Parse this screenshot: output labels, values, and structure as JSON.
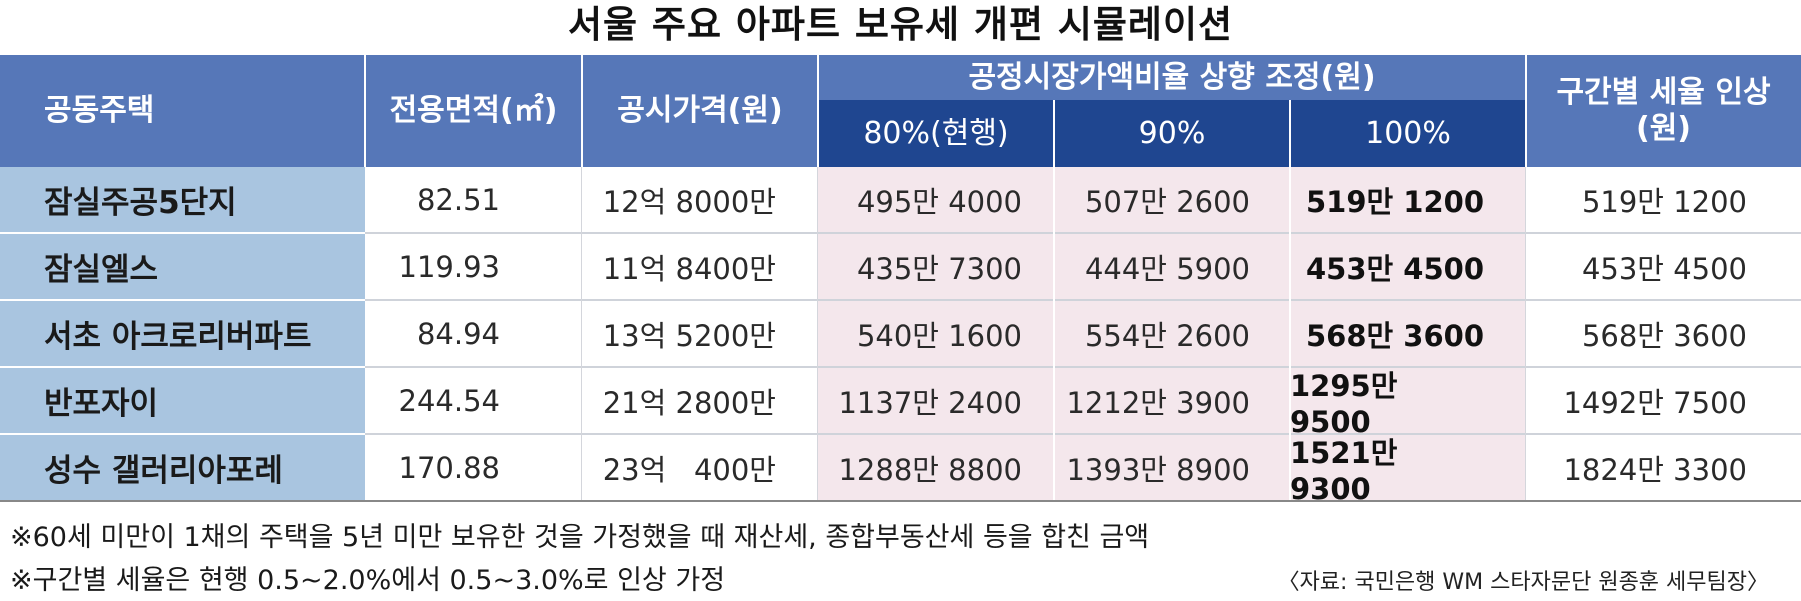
{
  "title": "서울 주요 아파트 보유세 개편 시뮬레이션",
  "headers": {
    "apartment": "공동주택",
    "area": "전용면적(㎡)",
    "price": "공시가격(원)",
    "ratio_group": "공정시장가액비율 상향 조정(원)",
    "p80": "80%(현행)",
    "p90": "90%",
    "p100": "100%",
    "rate_line1": "구간별 세율 인상",
    "rate_line2": "(원)"
  },
  "rows": [
    {
      "name": "잠실주공5단지",
      "area": "82.51",
      "price": "12억 8000만",
      "p80": "495만 4000",
      "p90": "507만 2600",
      "p100": "519만 1200",
      "rate": "519만 1200"
    },
    {
      "name": "잠실엘스",
      "area": "119.93",
      "price": "11억 8400만",
      "p80": "435만 7300",
      "p90": "444만 5900",
      "p100": "453만 4500",
      "rate": "453만 4500"
    },
    {
      "name": "서초 아크로리버파트",
      "area": "84.94",
      "price": "13억 5200만",
      "p80": "540만 1600",
      "p90": "554만 2600",
      "p100": "568만 3600",
      "rate": "568만 3600"
    },
    {
      "name": "반포자이",
      "area": "244.54",
      "price": "21억 2800만",
      "p80": "1137만 2400",
      "p90": "1212만 3900",
      "p100": "1295만 9500",
      "rate": "1492만 7500"
    },
    {
      "name": "성수 갤러리아포레",
      "area": "170.88",
      "price": "23억   400만",
      "p80": "1288만 8800",
      "p90": "1393만 8900",
      "p100": "1521만 9300",
      "rate": "1824만 3300"
    }
  ],
  "notes": {
    "note1": "※60세 미만이 1채의 주택을 5년 미만 보유한 것을 가정했을 때 재산세, 종합부동산세 등을 합친 금액",
    "note2": "※구간별 세율은 현행 0.5~2.0%에서 0.5~3.0%로 인상 가정",
    "source": "〈자료: 국민은행 WM 스타자문단 원종훈 세무팀장〉"
  },
  "colors": {
    "header_blue": "#5677b8",
    "header_dark": "#1f4690",
    "name_col": "#a9c5e0",
    "ratio_cells": "#f4e7ec"
  }
}
